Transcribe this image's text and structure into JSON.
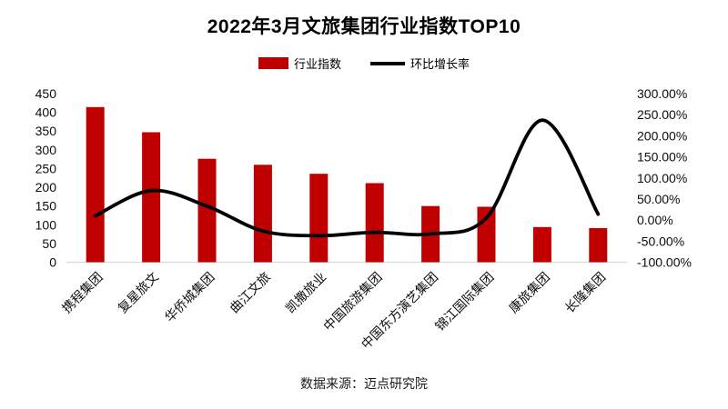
{
  "chart_data": {
    "type": "bar+line",
    "title": "2022年3月文旅集团行业指数TOP10",
    "source_note": "数据来源：迈点研究院",
    "categories": [
      "携程集团",
      "复星旅文",
      "华侨城集团",
      "曲江文旅",
      "凯撒旅业",
      "中国旅游集团",
      "中国东方演艺集团",
      "锦江国际集团",
      "康旅集团",
      "长隆集团"
    ],
    "series": [
      {
        "name": "行业指数",
        "type": "bar",
        "axis": "left",
        "color": "#C00000",
        "values": [
          414,
          347,
          276,
          260,
          236,
          211,
          150,
          148,
          94,
          91
        ]
      },
      {
        "name": "环比增长率",
        "type": "line",
        "axis": "right",
        "color": "#000000",
        "values_percent": [
          10,
          70,
          33,
          -26,
          -37,
          -29,
          -33,
          5,
          237,
          14
        ]
      }
    ],
    "left_axis": {
      "min": 0,
      "max": 450,
      "ticks": [
        "450",
        "400",
        "350",
        "300",
        "250",
        "200",
        "150",
        "100",
        "50",
        "0"
      ]
    },
    "right_axis": {
      "min": -100,
      "max": 300,
      "ticks": [
        "300.00%",
        "250.00%",
        "200.00%",
        "150.00%",
        "100.00%",
        "50.00%",
        "0.00%",
        "-50.00%",
        "-100.00%"
      ]
    },
    "grid": false,
    "legend_position": "top-center",
    "line_smooth": true,
    "axis_line_color": "#D9D9D9"
  }
}
